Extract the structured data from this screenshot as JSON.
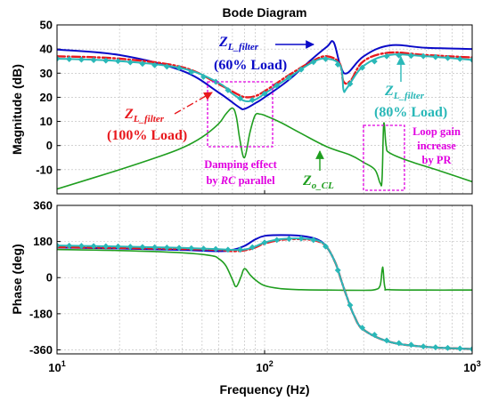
{
  "chart_data": {
    "type": "line",
    "title": "Bode Diagram",
    "xlabel": "Frequency  (Hz)",
    "x_scale": "log",
    "xlim": [
      10,
      1000
    ],
    "x_ticks": [
      {
        "value": 10,
        "label": "10"
      },
      {
        "value": 100,
        "label": "10"
      },
      {
        "value": 1000,
        "label": "10"
      }
    ],
    "x_tick_exponents": [
      "1",
      "2",
      "3"
    ],
    "grid": true,
    "colors": {
      "zl60": "#0a0ac8",
      "zl100": "#e8191e",
      "zl80": "#2ab8b8",
      "zocl": "#1f9e1f",
      "magenta": "#e000e0"
    },
    "magnitude": {
      "ylabel": "Magnitude (dB)",
      "ylim": [
        -20,
        50
      ],
      "y_ticks": [
        {
          "value": 50,
          "label": "50"
        },
        {
          "value": 40,
          "label": "40"
        },
        {
          "value": 30,
          "label": "30"
        },
        {
          "value": 20,
          "label": "20"
        },
        {
          "value": 10,
          "label": "10"
        },
        {
          "value": 0,
          "label": "0"
        },
        {
          "value": -10,
          "label": "-10"
        }
      ],
      "series": [
        {
          "key": "zl60",
          "x": [
            10,
            20,
            40,
            60,
            75,
            80,
            90,
            100,
            130,
            170,
            200,
            215,
            232,
            250,
            300,
            400,
            600,
            1000
          ],
          "y": [
            39.8,
            37.5,
            31,
            22,
            16,
            15.2,
            17.5,
            20,
            27,
            36,
            41,
            42.8,
            33,
            30,
            37,
            41.5,
            40.5,
            40
          ]
        },
        {
          "key": "zl100",
          "x": [
            10,
            20,
            40,
            60,
            75,
            82,
            90,
            100,
            130,
            170,
            200,
            230,
            240,
            260,
            300,
            400,
            600,
            1000
          ],
          "y": [
            37,
            36,
            32.5,
            25.5,
            21,
            20,
            20.5,
            22.5,
            29,
            35,
            37,
            34,
            26.5,
            27,
            35,
            38.5,
            37.5,
            36.5
          ]
        },
        {
          "key": "zl80",
          "x": [
            10,
            20,
            40,
            60,
            70,
            80,
            90,
            100,
            130,
            170,
            200,
            232,
            240,
            250,
            300,
            400,
            600,
            1000
          ],
          "y": [
            36,
            35,
            32,
            26,
            21.5,
            18.5,
            19,
            21.5,
            28,
            34.5,
            36,
            33,
            23,
            24,
            33,
            37.5,
            37,
            35.5
          ]
        },
        {
          "key": "zocl",
          "x": [
            10,
            20,
            30,
            40,
            50,
            60,
            65,
            70,
            73,
            76,
            80,
            85,
            90,
            95,
            100,
            120,
            150,
            200,
            260,
            300,
            340,
            360,
            368,
            375,
            385,
            400,
            500,
            700,
            1000
          ],
          "y": [
            -18,
            -10,
            -5,
            -1,
            3.5,
            9,
            13,
            15.5,
            12,
            2.5,
            -5,
            5.5,
            12.5,
            13,
            12.5,
            9.5,
            5,
            -0.5,
            -4,
            -7,
            -10,
            -15.5,
            -14,
            9,
            0,
            -3,
            -6.5,
            -10.5,
            -15
          ]
        }
      ]
    },
    "phase": {
      "ylabel": "Phase (deg)",
      "ylim": [
        -380,
        360
      ],
      "y_ticks": [
        {
          "value": 360,
          "label": "360"
        },
        {
          "value": 180,
          "label": "180"
        },
        {
          "value": 0,
          "label": "0"
        },
        {
          "value": -180,
          "label": "-180"
        },
        {
          "value": -360,
          "label": "-360"
        }
      ],
      "series": [
        {
          "key": "zl60",
          "x": [
            10,
            20,
            40,
            60,
            70,
            80,
            90,
            100,
            120,
            150,
            180,
            200,
            220,
            235,
            250,
            270,
            300,
            400,
            600,
            1000
          ],
          "y": [
            150,
            145,
            138,
            132,
            138,
            158,
            190,
            208,
            212,
            208,
            190,
            150,
            70,
            -20,
            -100,
            -190,
            -260,
            -320,
            -345,
            -356
          ]
        },
        {
          "key": "zl100",
          "x": [
            10,
            20,
            40,
            60,
            70,
            80,
            90,
            100,
            120,
            150,
            180,
            200,
            220,
            235,
            250,
            270,
            300,
            400,
            600,
            1000
          ],
          "y": [
            152,
            148,
            143,
            138,
            132,
            136,
            150,
            170,
            188,
            192,
            182,
            150,
            70,
            -20,
            -100,
            -190,
            -260,
            -320,
            -345,
            -356
          ]
        },
        {
          "key": "zl80",
          "x": [
            10,
            20,
            40,
            60,
            70,
            80,
            90,
            100,
            120,
            150,
            180,
            200,
            220,
            235,
            250,
            270,
            300,
            400,
            600,
            1000
          ],
          "y": [
            160,
            155,
            148,
            142,
            138,
            140,
            155,
            175,
            192,
            195,
            185,
            150,
            70,
            -20,
            -100,
            -190,
            -260,
            -320,
            -345,
            -356
          ]
        },
        {
          "key": "zocl",
          "x": [
            10,
            20,
            40,
            55,
            60,
            65,
            70,
            73,
            77,
            80,
            85,
            90,
            100,
            120,
            150,
            200,
            300,
            340,
            360,
            368,
            372,
            380,
            400,
            600,
            1000
          ],
          "y": [
            140,
            135,
            124,
            110,
            95,
            60,
            -10,
            -45,
            5,
            45,
            15,
            -10,
            -40,
            -55,
            -60,
            -62,
            -63,
            -60,
            -40,
            35,
            45,
            -50,
            -60,
            -62,
            -62
          ]
        }
      ]
    },
    "annotations": {
      "zl60_sym": "Z",
      "zl60_sub": "L_filter",
      "zl60_load": "(60% Load)",
      "zl100_sym": "Z",
      "zl100_sub": "L_filter",
      "zl100_load": "(100% Load)",
      "zl80_sym": "Z",
      "zl80_sub": "L_filter",
      "zl80_load": "(80% Load)",
      "zocl_sym": "Z",
      "zocl_sub": "o_CL",
      "damping_line1": "Damping effect",
      "damping_line2_pre": "by ",
      "damping_line2_em": "RC",
      "damping_line2_post": " parallel",
      "loop_line1": "Loop gain",
      "loop_line2": "increase",
      "loop_line3": "by PR"
    }
  }
}
